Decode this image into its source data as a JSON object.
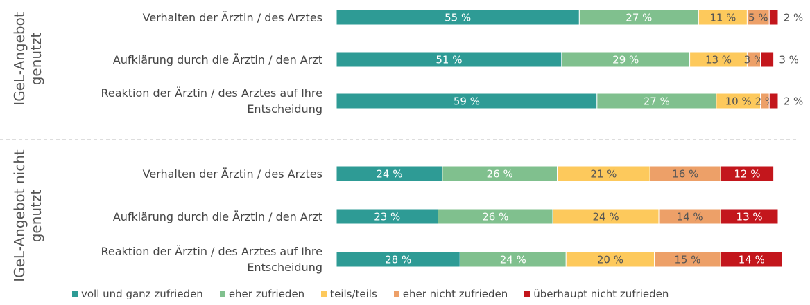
{
  "chart_data": {
    "type": "bar",
    "orientation": "horizontal",
    "stacked": true,
    "xlim": [
      0,
      100
    ],
    "series": [
      {
        "name": "voll und ganz zufrieden",
        "color": "#2e9b95"
      },
      {
        "name": "eher zufrieden",
        "color": "#80c08e"
      },
      {
        "name": "teils/teils",
        "color": "#fdc95c"
      },
      {
        "name": "eher nicht zufrieden",
        "color": "#eda068"
      },
      {
        "name": "überhaupt nicht zufrieden",
        "color": "#c3161c"
      }
    ],
    "panels": [
      {
        "title": "IGeL-Angebot genutzt",
        "categories": [
          "Verhalten der Ärztin / des Arztes",
          "Aufklärung durch die Ärztin / den Arzt",
          "Reaktion der Ärztin / des Arztes auf Ihre Entscheidung"
        ],
        "series": [
          {
            "values": [
              55,
              51,
              59
            ],
            "value_labels": [
              "55 %",
              "51 %",
              "59 %"
            ]
          },
          {
            "values": [
              27,
              29,
              27
            ],
            "value_labels": [
              "27 %",
              "29 %",
              "27 %"
            ]
          },
          {
            "values": [
              11,
              13,
              10
            ],
            "value_labels": [
              "11 %",
              "13 %",
              "10 %"
            ]
          },
          {
            "values": [
              5,
              3,
              2
            ],
            "value_labels": [
              "5 %",
              "3 %",
              "2 %"
            ]
          },
          {
            "values": [
              2,
              3,
              2
            ],
            "value_labels": [
              "2 %",
              "3 %",
              "2 %"
            ]
          }
        ]
      },
      {
        "title": "IGeL-Angebot nicht genutzt",
        "categories": [
          "Verhalten der Ärztin / des Arztes",
          "Aufklärung durch die Ärztin / den Arzt",
          "Reaktion der Ärztin / des Arztes auf Ihre Entscheidung"
        ],
        "series": [
          {
            "values": [
              24,
              23,
              28
            ],
            "value_labels": [
              "24 %",
              "23 %",
              "28 %"
            ]
          },
          {
            "values": [
              26,
              26,
              24
            ],
            "value_labels": [
              "26 %",
              "26 %",
              "24 %"
            ]
          },
          {
            "values": [
              21,
              24,
              20
            ],
            "value_labels": [
              "21 %",
              "24 %",
              "20 %"
            ]
          },
          {
            "values": [
              16,
              14,
              15
            ],
            "value_labels": [
              "16 %",
              "14 %",
              "15 %"
            ]
          },
          {
            "values": [
              12,
              13,
              14
            ],
            "value_labels": [
              "12 %",
              "13 %",
              "14 %"
            ]
          }
        ]
      }
    ]
  }
}
